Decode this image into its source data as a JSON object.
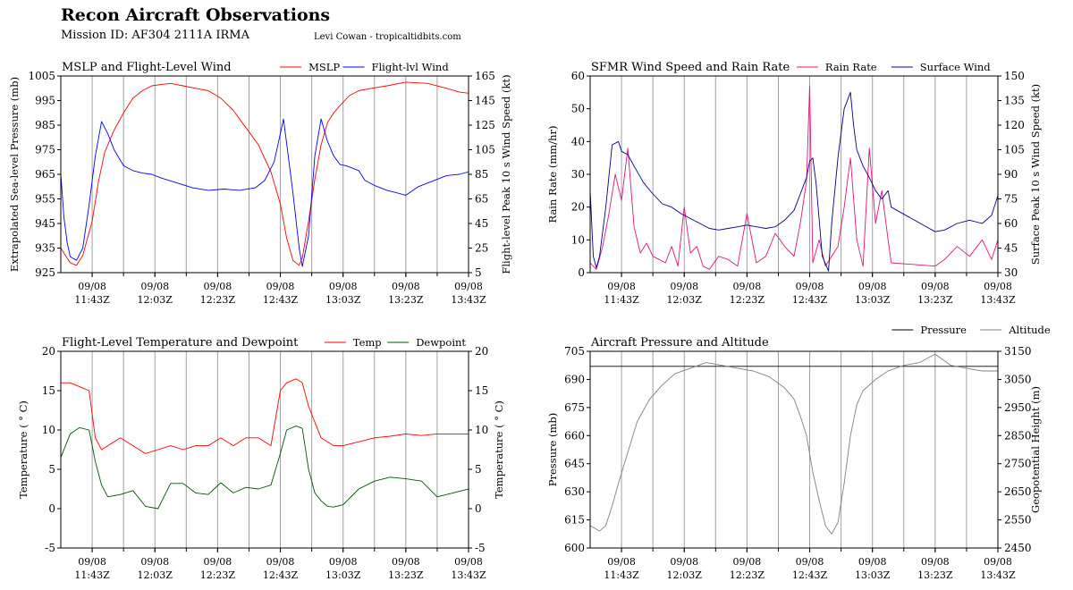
{
  "header": {
    "title": "Recon Aircraft Observations",
    "subtitle": "Mission ID: AF304 2111A IRMA",
    "credit": "Levi Cowan - tropicaltidbits.com"
  },
  "chart_data": [
    {
      "id": "mslp",
      "type": "line",
      "title": "MSLP and Flight-Level Wind",
      "ylabel": "Extrapolated Sea-level Pressure (mb)",
      "y2label": "Flight-level Peak 10 s Wind Speed (kt)",
      "ylim": [
        925,
        1005
      ],
      "yticks": [
        925,
        935,
        945,
        955,
        965,
        975,
        985,
        995,
        1005
      ],
      "y2lim": [
        5,
        165
      ],
      "y2ticks": [
        5,
        25,
        45,
        65,
        85,
        105,
        125,
        145,
        165
      ],
      "xlim": [
        "11:33Z",
        "13:43Z"
      ],
      "xticks": [
        "09/08 11:43Z",
        "09/08 12:03Z",
        "09/08 12:23Z",
        "09/08 12:43Z",
        "09/08 13:03Z",
        "09/08 13:23Z",
        "09/08 13:43Z"
      ],
      "legend": "top-right",
      "series": [
        {
          "name": "MSLP",
          "axis": "left",
          "color": "#ff0000",
          "x": [
            "11:33Z",
            "11:36Z",
            "11:38Z",
            "11:40Z",
            "11:43Z",
            "11:45Z",
            "11:47Z",
            "11:50Z",
            "11:53Z",
            "11:56Z",
            "11:59Z",
            "12:02Z",
            "12:05Z",
            "12:08Z",
            "12:12Z",
            "12:16Z",
            "12:20Z",
            "12:24Z",
            "12:28Z",
            "12:32Z",
            "12:36Z",
            "12:40Z",
            "12:43Z",
            "12:45Z",
            "12:47Z",
            "12:49Z",
            "12:50Z",
            "12:52Z",
            "12:54Z",
            "12:56Z",
            "12:58Z",
            "13:00Z",
            "13:02Z",
            "13:05Z",
            "13:08Z",
            "13:12Z",
            "13:17Z",
            "13:23Z",
            "13:30Z",
            "13:36Z",
            "13:40Z",
            "13:43Z"
          ],
          "y": [
            935,
            929,
            928,
            932,
            946,
            962,
            974,
            983,
            990,
            996,
            999,
            1001,
            1001.5,
            1002,
            1001,
            1000,
            999,
            996,
            991,
            984,
            977,
            966,
            953,
            939,
            930,
            928,
            931,
            946,
            963,
            977,
            986,
            990,
            993,
            997,
            999,
            1000,
            1001,
            1002.5,
            1002,
            1000,
            998.5,
            998
          ]
        },
        {
          "name": "Flight-lvl Wind",
          "axis": "right",
          "color": "#0000ff",
          "x": [
            "11:33Z",
            "11:34Z",
            "11:35Z",
            "11:36Z",
            "11:38Z",
            "11:40Z",
            "11:42Z",
            "11:44Z",
            "11:46Z",
            "11:48Z",
            "11:50Z",
            "11:53Z",
            "11:56Z",
            "11:59Z",
            "12:02Z",
            "12:05Z",
            "12:10Z",
            "12:15Z",
            "12:20Z",
            "12:25Z",
            "12:30Z",
            "12:35Z",
            "12:38Z",
            "12:41Z",
            "12:43Z",
            "12:44Z",
            "12:45Z",
            "12:47Z",
            "12:49Z",
            "12:50Z",
            "12:52Z",
            "12:54Z",
            "12:56Z",
            "12:58Z",
            "13:00Z",
            "13:02Z",
            "13:04Z",
            "13:06Z",
            "13:08Z",
            "13:10Z",
            "13:13Z",
            "13:17Z",
            "13:20Z",
            "13:23Z",
            "13:27Z",
            "13:32Z",
            "13:36Z",
            "13:40Z",
            "13:43Z"
          ],
          "y": [
            85,
            50,
            30,
            18,
            15,
            25,
            60,
            100,
            128,
            118,
            105,
            92,
            88,
            86,
            85,
            82,
            78,
            74,
            72,
            73,
            72,
            74,
            80,
            95,
            118,
            130,
            110,
            70,
            25,
            10,
            35,
            100,
            130,
            112,
            100,
            93,
            92,
            90,
            88,
            80,
            76,
            72,
            70,
            68,
            75,
            80,
            84,
            85,
            87
          ]
        }
      ]
    },
    {
      "id": "sfmr",
      "type": "line",
      "title": "SFMR Wind Speed and Rain Rate",
      "ylabel": "Rain Rate (mm/hr)",
      "y2label": "Surface Peak 10 s Wind Speed (kt)",
      "ylim": [
        0,
        60
      ],
      "yticks": [
        0,
        10,
        20,
        30,
        40,
        50,
        60
      ],
      "y2lim": [
        30,
        150
      ],
      "y2ticks": [
        30,
        45,
        60,
        75,
        90,
        105,
        120,
        135,
        150
      ],
      "xlim": [
        "11:33Z",
        "13:43Z"
      ],
      "xticks": [
        "09/08 11:43Z",
        "09/08 12:03Z",
        "09/08 12:23Z",
        "09/08 12:43Z",
        "09/08 13:03Z",
        "09/08 13:23Z",
        "09/08 13:43Z"
      ],
      "legend": "top-right",
      "series": [
        {
          "name": "Rain Rate",
          "axis": "left",
          "color": "#e0157a",
          "x": [
            "11:33Z",
            "11:35Z",
            "11:37Z",
            "11:39Z",
            "11:41Z",
            "11:43Z",
            "11:45Z",
            "11:47Z",
            "11:49Z",
            "11:51Z",
            "11:53Z",
            "11:55Z",
            "11:57Z",
            "11:59Z",
            "12:01Z",
            "12:03Z",
            "12:05Z",
            "12:07Z",
            "12:09Z",
            "12:11Z",
            "12:14Z",
            "12:17Z",
            "12:20Z",
            "12:23Z",
            "12:26Z",
            "12:29Z",
            "12:32Z",
            "12:35Z",
            "12:38Z",
            "12:40Z",
            "12:42Z",
            "12:43Z",
            "12:44Z",
            "12:46Z",
            "12:48Z",
            "12:50Z",
            "12:52Z",
            "12:54Z",
            "12:56Z",
            "12:58Z",
            "13:00Z",
            "13:02Z",
            "13:04Z",
            "13:06Z",
            "13:08Z",
            "13:09Z",
            "13:23Z",
            "13:26Z",
            "13:30Z",
            "13:34Z",
            "13:38Z",
            "13:41Z",
            "13:43Z"
          ],
          "y": [
            3,
            1,
            8,
            18,
            30,
            22,
            38,
            14,
            6,
            9,
            5,
            4,
            3,
            8,
            2,
            20,
            6,
            8,
            2,
            1,
            5,
            4,
            2,
            18,
            3,
            5,
            12,
            8,
            5,
            15,
            28,
            57,
            3,
            10,
            2,
            5,
            8,
            20,
            35,
            10,
            2,
            38,
            15,
            25,
            10,
            3,
            2,
            4,
            8,
            5,
            10,
            4,
            10
          ]
        },
        {
          "name": "Surface Wind",
          "axis": "right",
          "color": "#00008b",
          "x": [
            "11:33Z",
            "11:34Z",
            "11:35Z",
            "11:36Z",
            "11:38Z",
            "11:40Z",
            "11:42Z",
            "11:43Z",
            "11:45Z",
            "11:47Z",
            "11:50Z",
            "11:53Z",
            "11:56Z",
            "11:59Z",
            "12:02Z",
            "12:05Z",
            "12:08Z",
            "12:11Z",
            "12:14Z",
            "12:17Z",
            "12:20Z",
            "12:23Z",
            "12:26Z",
            "12:29Z",
            "12:32Z",
            "12:35Z",
            "12:38Z",
            "12:40Z",
            "12:42Z",
            "12:43Z",
            "12:44Z",
            "12:45Z",
            "12:47Z",
            "12:49Z",
            "12:50Z",
            "12:52Z",
            "12:54Z",
            "12:56Z",
            "12:57Z",
            "12:58Z",
            "13:00Z",
            "13:02Z",
            "13:04Z",
            "13:06Z",
            "13:08Z",
            "13:09Z",
            "13:23Z",
            "13:26Z",
            "13:30Z",
            "13:34Z",
            "13:38Z",
            "13:41Z",
            "13:43Z"
          ],
          "y": [
            80,
            40,
            33,
            40,
            70,
            108,
            110,
            104,
            102,
            95,
            85,
            78,
            72,
            70,
            66,
            63,
            60,
            57,
            56,
            57,
            58,
            59,
            58,
            57,
            58,
            62,
            68,
            78,
            88,
            98,
            100,
            85,
            40,
            31,
            60,
            100,
            130,
            140,
            120,
            105,
            95,
            88,
            80,
            75,
            80,
            70,
            55,
            56,
            60,
            62,
            60,
            65,
            77
          ]
        }
      ]
    },
    {
      "id": "temp",
      "type": "line",
      "title": "Flight-Level Temperature and Dewpoint",
      "ylabel": "Temperature ( ° C)",
      "y2label": "Temperature ( ° C)",
      "ylim": [
        -5,
        20
      ],
      "yticks": [
        -5,
        0,
        5,
        10,
        15,
        20
      ],
      "y2lim": [
        -5,
        20
      ],
      "y2ticks": [
        -5,
        0,
        5,
        10,
        15,
        20
      ],
      "xlim": [
        "11:33Z",
        "13:43Z"
      ],
      "xticks": [
        "09/08 11:43Z",
        "09/08 12:03Z",
        "09/08 12:23Z",
        "09/08 12:43Z",
        "09/08 13:03Z",
        "09/08 13:23Z",
        "09/08 13:43Z"
      ],
      "legend": "top-right",
      "series": [
        {
          "name": "Temp",
          "axis": "left",
          "color": "#ff0000",
          "x": [
            "11:33Z",
            "11:36Z",
            "11:39Z",
            "11:42Z",
            "11:44Z",
            "11:46Z",
            "11:48Z",
            "11:52Z",
            "11:56Z",
            "12:00Z",
            "12:04Z",
            "12:08Z",
            "12:12Z",
            "12:16Z",
            "12:20Z",
            "12:24Z",
            "12:28Z",
            "12:32Z",
            "12:36Z",
            "12:40Z",
            "12:43Z",
            "12:45Z",
            "12:48Z",
            "12:50Z",
            "12:52Z",
            "12:54Z",
            "12:56Z",
            "12:58Z",
            "13:00Z",
            "13:03Z",
            "13:08Z",
            "13:13Z",
            "13:18Z",
            "13:23Z",
            "13:28Z",
            "13:33Z",
            "13:38Z",
            "13:43Z"
          ],
          "y": [
            16,
            16,
            15.5,
            15,
            9,
            7.5,
            8,
            9,
            8,
            7,
            7.5,
            8,
            7.5,
            8,
            8,
            9,
            8,
            9,
            9,
            8,
            15,
            16,
            16.5,
            16,
            13,
            11,
            9,
            8.5,
            8,
            8,
            8.5,
            9,
            9.2,
            9.5,
            9.3,
            9.5,
            9.5,
            9.5
          ]
        },
        {
          "name": "Dewpoint",
          "axis": "left",
          "color": "#005500",
          "x": [
            "11:33Z",
            "11:36Z",
            "11:39Z",
            "11:42Z",
            "11:44Z",
            "11:46Z",
            "11:48Z",
            "11:52Z",
            "11:56Z",
            "12:00Z",
            "12:04Z",
            "12:08Z",
            "12:12Z",
            "12:16Z",
            "12:20Z",
            "12:24Z",
            "12:28Z",
            "12:32Z",
            "12:36Z",
            "12:40Z",
            "12:43Z",
            "12:45Z",
            "12:48Z",
            "12:50Z",
            "12:52Z",
            "12:54Z",
            "12:56Z",
            "12:58Z",
            "13:00Z",
            "13:03Z",
            "13:08Z",
            "13:13Z",
            "13:18Z",
            "13:23Z",
            "13:28Z",
            "13:33Z",
            "13:38Z",
            "13:43Z"
          ],
          "y": [
            6.5,
            9.5,
            10.3,
            10,
            6,
            3,
            1.5,
            1.8,
            2.3,
            0.3,
            0,
            3.2,
            3.2,
            2,
            1.8,
            3.3,
            2,
            2.7,
            2.5,
            3,
            7,
            10,
            10.5,
            10.2,
            5,
            2,
            1,
            0.3,
            0.2,
            0.5,
            2.5,
            3.5,
            4,
            3.8,
            3.5,
            1.5,
            2,
            2.5
          ]
        }
      ]
    },
    {
      "id": "alt",
      "type": "line",
      "title": "Aircraft Pressure and Altitude",
      "ylabel": "Pressure (mb)",
      "y2label": "Geopotential Height (m)",
      "ylim": [
        600,
        705
      ],
      "yticks": [
        600,
        615,
        630,
        645,
        660,
        675,
        690,
        705
      ],
      "y2lim": [
        2450,
        3150
      ],
      "y2ticks": [
        2450,
        2550,
        2650,
        2750,
        2850,
        2950,
        3050,
        3150
      ],
      "xlim": [
        "11:33Z",
        "13:43Z"
      ],
      "xticks": [
        "09/08 11:43Z",
        "09/08 12:03Z",
        "09/08 12:23Z",
        "09/08 12:43Z",
        "09/08 13:03Z",
        "09/08 13:23Z",
        "09/08 13:43Z"
      ],
      "legend": "above-right",
      "series": [
        {
          "name": "Pressure",
          "axis": "left",
          "color": "#000000",
          "x": [
            "11:33Z",
            "11:43Z",
            "11:53Z",
            "12:03Z",
            "12:13Z",
            "12:23Z",
            "12:33Z",
            "12:43Z",
            "12:53Z",
            "13:03Z",
            "13:13Z",
            "13:23Z",
            "13:33Z",
            "13:43Z"
          ],
          "y": [
            697,
            697,
            697,
            697,
            697,
            697,
            697,
            697,
            697,
            697,
            697,
            697,
            697,
            697
          ]
        },
        {
          "name": "Altitude",
          "axis": "right",
          "color": "#808080",
          "x": [
            "11:33Z",
            "11:36Z",
            "11:38Z",
            "11:40Z",
            "11:42Z",
            "11:45Z",
            "11:48Z",
            "11:52Z",
            "11:56Z",
            "12:00Z",
            "12:05Z",
            "12:10Z",
            "12:15Z",
            "12:20Z",
            "12:25Z",
            "12:30Z",
            "12:35Z",
            "12:38Z",
            "12:40Z",
            "12:42Z",
            "12:44Z",
            "12:46Z",
            "12:48Z",
            "12:50Z",
            "12:52Z",
            "12:54Z",
            "12:56Z",
            "12:58Z",
            "13:00Z",
            "13:04Z",
            "13:08Z",
            "13:13Z",
            "13:18Z",
            "13:23Z",
            "13:28Z",
            "13:33Z",
            "13:38Z",
            "13:43Z"
          ],
          "y": [
            2530,
            2510,
            2530,
            2600,
            2680,
            2790,
            2900,
            2980,
            3030,
            3070,
            3090,
            3110,
            3100,
            3090,
            3080,
            3060,
            3020,
            2980,
            2920,
            2850,
            2720,
            2620,
            2530,
            2500,
            2540,
            2680,
            2850,
            2960,
            3010,
            3050,
            3080,
            3100,
            3110,
            3140,
            3100,
            3090,
            3080,
            3080
          ]
        }
      ]
    }
  ]
}
